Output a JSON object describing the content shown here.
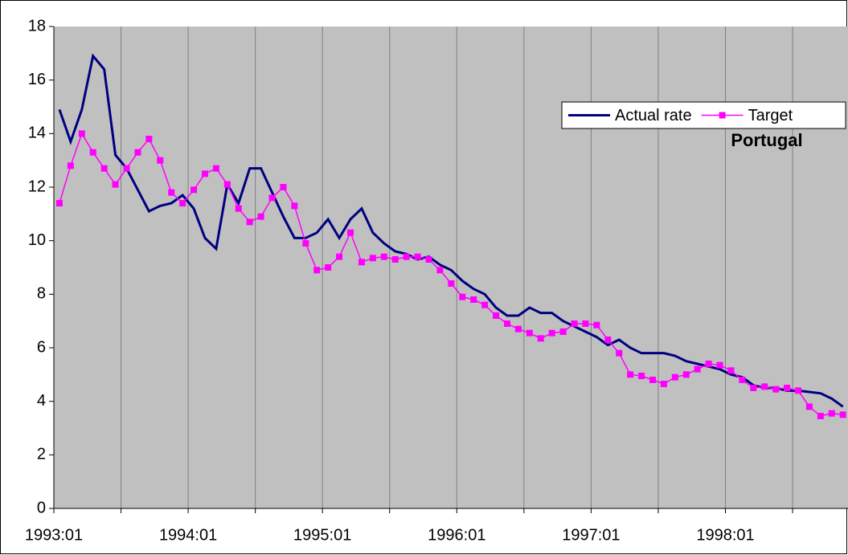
{
  "chart_data": {
    "type": "line",
    "annotation": "Portugal",
    "categories": [
      "1993:01",
      null,
      null,
      null,
      null,
      null,
      null,
      null,
      null,
      null,
      null,
      null,
      "1994:01",
      null,
      null,
      null,
      null,
      null,
      null,
      null,
      null,
      null,
      null,
      null,
      "1995:01",
      null,
      null,
      null,
      null,
      null,
      null,
      null,
      null,
      null,
      null,
      null,
      "1996:01",
      null,
      null,
      null,
      null,
      null,
      null,
      null,
      null,
      null,
      null,
      null,
      "1997:01",
      null,
      null,
      null,
      null,
      null,
      null,
      null,
      null,
      null,
      null,
      null,
      "1998:01",
      null,
      null,
      null,
      null,
      null,
      null,
      null,
      null,
      null,
      null
    ],
    "series": [
      {
        "name": "Actual rate",
        "color": "#000080",
        "marker": false,
        "values": [
          14.9,
          13.7,
          14.9,
          16.9,
          16.4,
          13.2,
          12.7,
          11.9,
          11.1,
          11.3,
          11.4,
          11.7,
          11.2,
          10.1,
          9.7,
          12.1,
          11.4,
          12.7,
          12.7,
          11.8,
          10.9,
          10.1,
          10.1,
          10.3,
          10.8,
          10.1,
          10.8,
          11.2,
          10.3,
          9.9,
          9.6,
          9.5,
          9.3,
          9.4,
          9.1,
          8.9,
          8.5,
          8.2,
          8.0,
          7.5,
          7.2,
          7.2,
          7.5,
          7.3,
          7.3,
          7.0,
          6.8,
          6.6,
          6.4,
          6.1,
          6.3,
          6.0,
          5.8,
          5.8,
          5.8,
          5.7,
          5.5,
          5.4,
          5.3,
          5.2,
          5.0,
          4.9,
          4.6,
          4.5,
          4.5,
          4.4,
          4.4,
          4.35,
          4.3,
          4.1,
          3.8
        ]
      },
      {
        "name": "Target",
        "color": "#ff00ff",
        "marker": true,
        "values": [
          11.4,
          12.8,
          14.0,
          13.3,
          12.7,
          12.1,
          12.7,
          13.3,
          13.8,
          13.0,
          11.8,
          11.4,
          11.9,
          12.5,
          12.7,
          12.1,
          11.2,
          10.7,
          10.9,
          11.6,
          12.0,
          11.3,
          9.9,
          8.9,
          9.0,
          9.4,
          10.3,
          9.2,
          9.35,
          9.4,
          9.3,
          9.4,
          9.4,
          9.3,
          8.9,
          8.4,
          7.9,
          7.8,
          7.6,
          7.2,
          6.9,
          6.7,
          6.55,
          6.35,
          6.55,
          6.6,
          6.9,
          6.9,
          6.85,
          6.3,
          5.8,
          5.0,
          4.95,
          4.8,
          4.65,
          4.9,
          5.0,
          5.2,
          5.4,
          5.35,
          5.15,
          4.8,
          4.5,
          4.55,
          4.45,
          4.5,
          4.4,
          3.8,
          3.45,
          3.55,
          3.5
        ]
      }
    ],
    "ylim": [
      0,
      18
    ],
    "yticks": [
      0,
      2,
      4,
      6,
      8,
      10,
      12,
      14,
      16,
      18
    ],
    "plot_color": "#c0c0c0",
    "grid": true,
    "legend": "top-right"
  }
}
